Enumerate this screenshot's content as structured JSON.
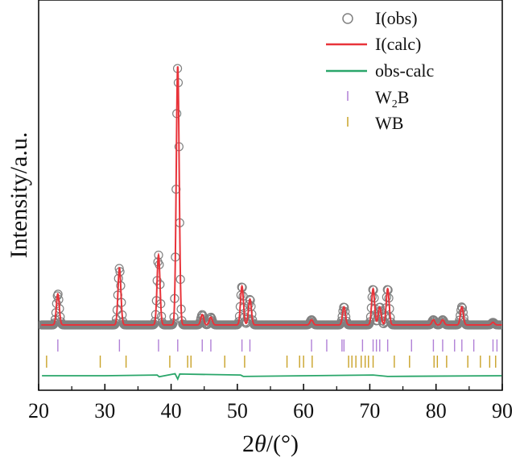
{
  "chart_data": {
    "type": "line",
    "title": "",
    "xlabel_prefix": "2",
    "xlabel_theta": "θ",
    "xlabel_suffix": "/(°)",
    "ylabel": "Intensity/a.u.",
    "xlim": [
      20,
      90
    ],
    "ylim": [
      -0.2,
      1.05
    ],
    "x_ticks": [
      20,
      30,
      40,
      50,
      60,
      70,
      80,
      90
    ],
    "x_tick_labels": [
      "20",
      "30",
      "40",
      "50",
      "60",
      "70",
      "80",
      "90"
    ],
    "y_ticks_shown": false,
    "grid": false,
    "legend_position": "top-right",
    "legend": [
      {
        "key": "obs",
        "label": "I(obs)",
        "symbol": "open-circle",
        "color": "#808080"
      },
      {
        "key": "calc",
        "label": "I(calc)",
        "symbol": "line",
        "color": "#e8333a"
      },
      {
        "key": "diff",
        "label": "obs-calc",
        "symbol": "line",
        "color": "#2aa66a"
      },
      {
        "key": "w2b",
        "label_main": "W",
        "label_sub": "2",
        "label_tail": "B",
        "symbol": "tick",
        "color": "#b07fd6"
      },
      {
        "key": "wb",
        "label": "WB",
        "symbol": "tick",
        "color": "#c9a227"
      }
    ],
    "baseline": 0.0,
    "peaks": [
      {
        "x": 22.9,
        "h": 0.12
      },
      {
        "x": 32.2,
        "h": 0.22
      },
      {
        "x": 38.1,
        "h": 0.27
      },
      {
        "x": 41.0,
        "h": 1.0
      },
      {
        "x": 44.7,
        "h": 0.04
      },
      {
        "x": 46.0,
        "h": 0.03
      },
      {
        "x": 50.7,
        "h": 0.15
      },
      {
        "x": 51.9,
        "h": 0.1
      },
      {
        "x": 61.2,
        "h": 0.02
      },
      {
        "x": 66.1,
        "h": 0.07
      },
      {
        "x": 70.5,
        "h": 0.14
      },
      {
        "x": 71.5,
        "h": 0.07
      },
      {
        "x": 72.7,
        "h": 0.14
      },
      {
        "x": 79.6,
        "h": 0.02
      },
      {
        "x": 81.0,
        "h": 0.02
      },
      {
        "x": 83.9,
        "h": 0.07
      },
      {
        "x": 88.6,
        "h": 0.01
      }
    ],
    "diff_curve": [
      [
        20.5,
        0.0
      ],
      [
        30,
        0.0
      ],
      [
        37.9,
        0.002
      ],
      [
        38.2,
        -0.003
      ],
      [
        40.6,
        0.006
      ],
      [
        41.0,
        -0.01
      ],
      [
        41.3,
        0.005
      ],
      [
        50.5,
        0.002
      ],
      [
        50.9,
        -0.002
      ],
      [
        70.5,
        0.002
      ],
      [
        72.7,
        -0.002
      ],
      [
        89.9,
        0.0
      ]
    ],
    "w2b_reflections": [
      22.9,
      32.2,
      38.1,
      41.0,
      44.7,
      46.0,
      50.7,
      51.9,
      61.2,
      63.5,
      65.8,
      66.1,
      68.9,
      70.5,
      71.0,
      71.5,
      72.7,
      76.3,
      79.6,
      81.0,
      82.8,
      83.9,
      85.7,
      88.6,
      89.2
    ],
    "wb_reflections": [
      21.2,
      29.3,
      33.2,
      39.8,
      42.5,
      43.0,
      48.1,
      51.1,
      57.5,
      59.4,
      60.0,
      61.3,
      66.8,
      67.3,
      67.9,
      68.7,
      69.3,
      69.8,
      70.5,
      73.7,
      76.0,
      79.7,
      80.2,
      81.6,
      84.8,
      86.7,
      88.1,
      89.0
    ]
  }
}
